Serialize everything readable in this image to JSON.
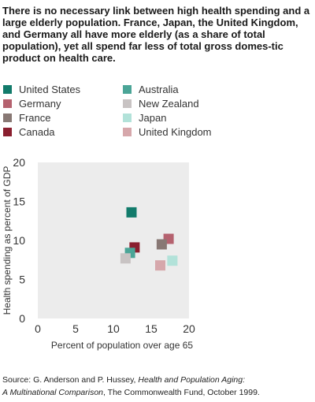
{
  "headline": "There is no necessary link between high health spending and a large elderly population. France, Japan, the United Kingdom, and Germany all have more elderly (as a share of total population), yet all spend far less of total gross domes-tic product on health care.",
  "source": {
    "prefix": "Source: G. Anderson and P. Hussey, ",
    "title_line1": "Health and Population Aging:",
    "title_line2": "A Multinational Comparison",
    "suffix": ", The Commonwealth Fund, October 1999."
  },
  "chart_data": {
    "type": "scatter",
    "xlabel": "Percent of population over age 65",
    "ylabel": "Health spending as percent of GDP",
    "xlim": [
      0,
      20
    ],
    "ylim": [
      0,
      20
    ],
    "xticks": [
      "0",
      "5",
      "10",
      "15",
      "20"
    ],
    "yticks": [
      "0",
      "5",
      "10",
      "15",
      "20"
    ],
    "grid": false,
    "legend_position": "top",
    "series": [
      {
        "name": "United States",
        "color": "#127b6b",
        "x": 12.4,
        "y": 13.6
      },
      {
        "name": "Germany",
        "color": "#b5626f",
        "x": 17.3,
        "y": 10.2
      },
      {
        "name": "France",
        "color": "#887874",
        "x": 16.4,
        "y": 9.5
      },
      {
        "name": "Canada",
        "color": "#8a1f2f",
        "x": 12.8,
        "y": 9.1
      },
      {
        "name": "Australia",
        "color": "#4ba597",
        "x": 12.2,
        "y": 8.4
      },
      {
        "name": "New Zealand",
        "color": "#c8c3c3",
        "x": 11.6,
        "y": 7.7
      },
      {
        "name": "Japan",
        "color": "#b2e2d9",
        "x": 17.8,
        "y": 7.4
      },
      {
        "name": "United Kingdom",
        "color": "#d6a7ab",
        "x": 16.2,
        "y": 6.8
      }
    ]
  }
}
